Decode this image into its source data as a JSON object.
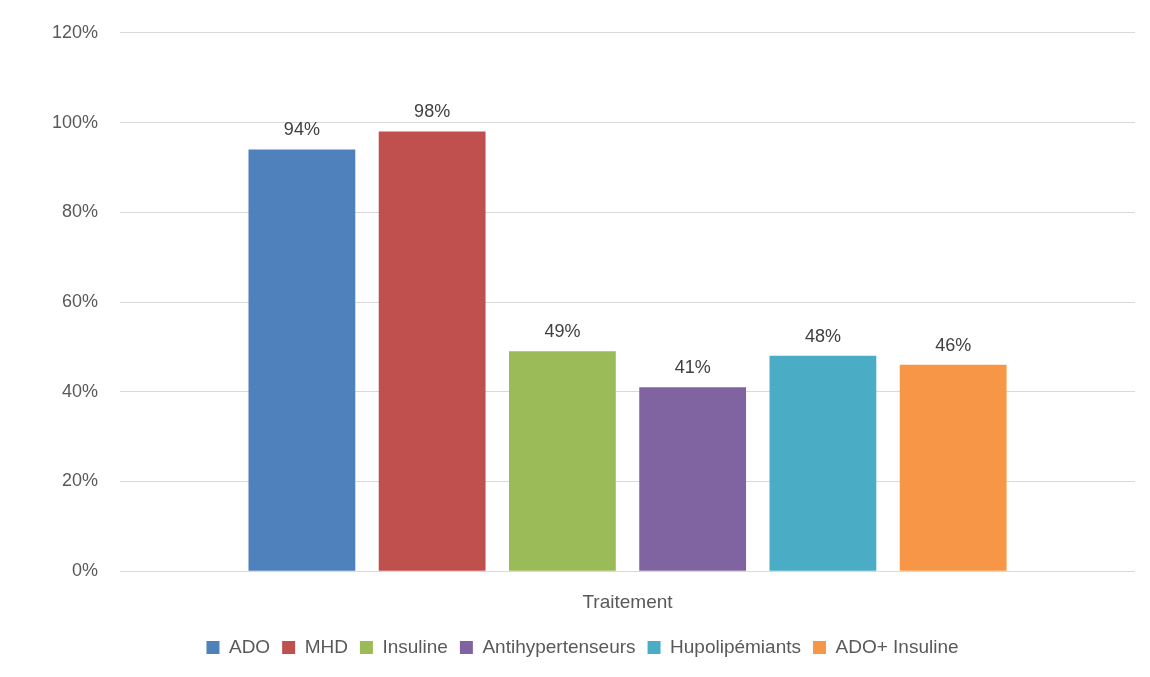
{
  "chart_data": {
    "type": "bar",
    "categories": [
      "Traitement"
    ],
    "series": [
      {
        "name": "ADO",
        "color": "#4f81bd",
        "values": [
          94
        ],
        "value_labels": [
          "94%"
        ]
      },
      {
        "name": "MHD",
        "color": "#c0504d",
        "values": [
          98
        ],
        "value_labels": [
          "98%"
        ]
      },
      {
        "name": "Insuline",
        "color": "#9bbb59",
        "values": [
          49
        ],
        "value_labels": [
          "49%"
        ]
      },
      {
        "name": "Antihypertenseurs",
        "color": "#8064a2",
        "values": [
          41
        ],
        "value_labels": [
          "41%"
        ]
      },
      {
        "name": "Hupolipémiants",
        "color": "#4bacc6",
        "values": [
          48
        ],
        "value_labels": [
          "48%"
        ]
      },
      {
        "name": "ADO+ Insuline",
        "color": "#f79646",
        "values": [
          46
        ],
        "value_labels": [
          "46%"
        ]
      }
    ],
    "ylim": [
      0,
      120
    ],
    "yticks": [
      {
        "value": 0,
        "label": "0%"
      },
      {
        "value": 20,
        "label": "20%"
      },
      {
        "value": 40,
        "label": "40%"
      },
      {
        "value": 60,
        "label": "60%"
      },
      {
        "value": 80,
        "label": "80%"
      },
      {
        "value": 100,
        "label": "100%"
      },
      {
        "value": 120,
        "label": "120%"
      }
    ],
    "grid": "y",
    "legend": "bottom"
  }
}
